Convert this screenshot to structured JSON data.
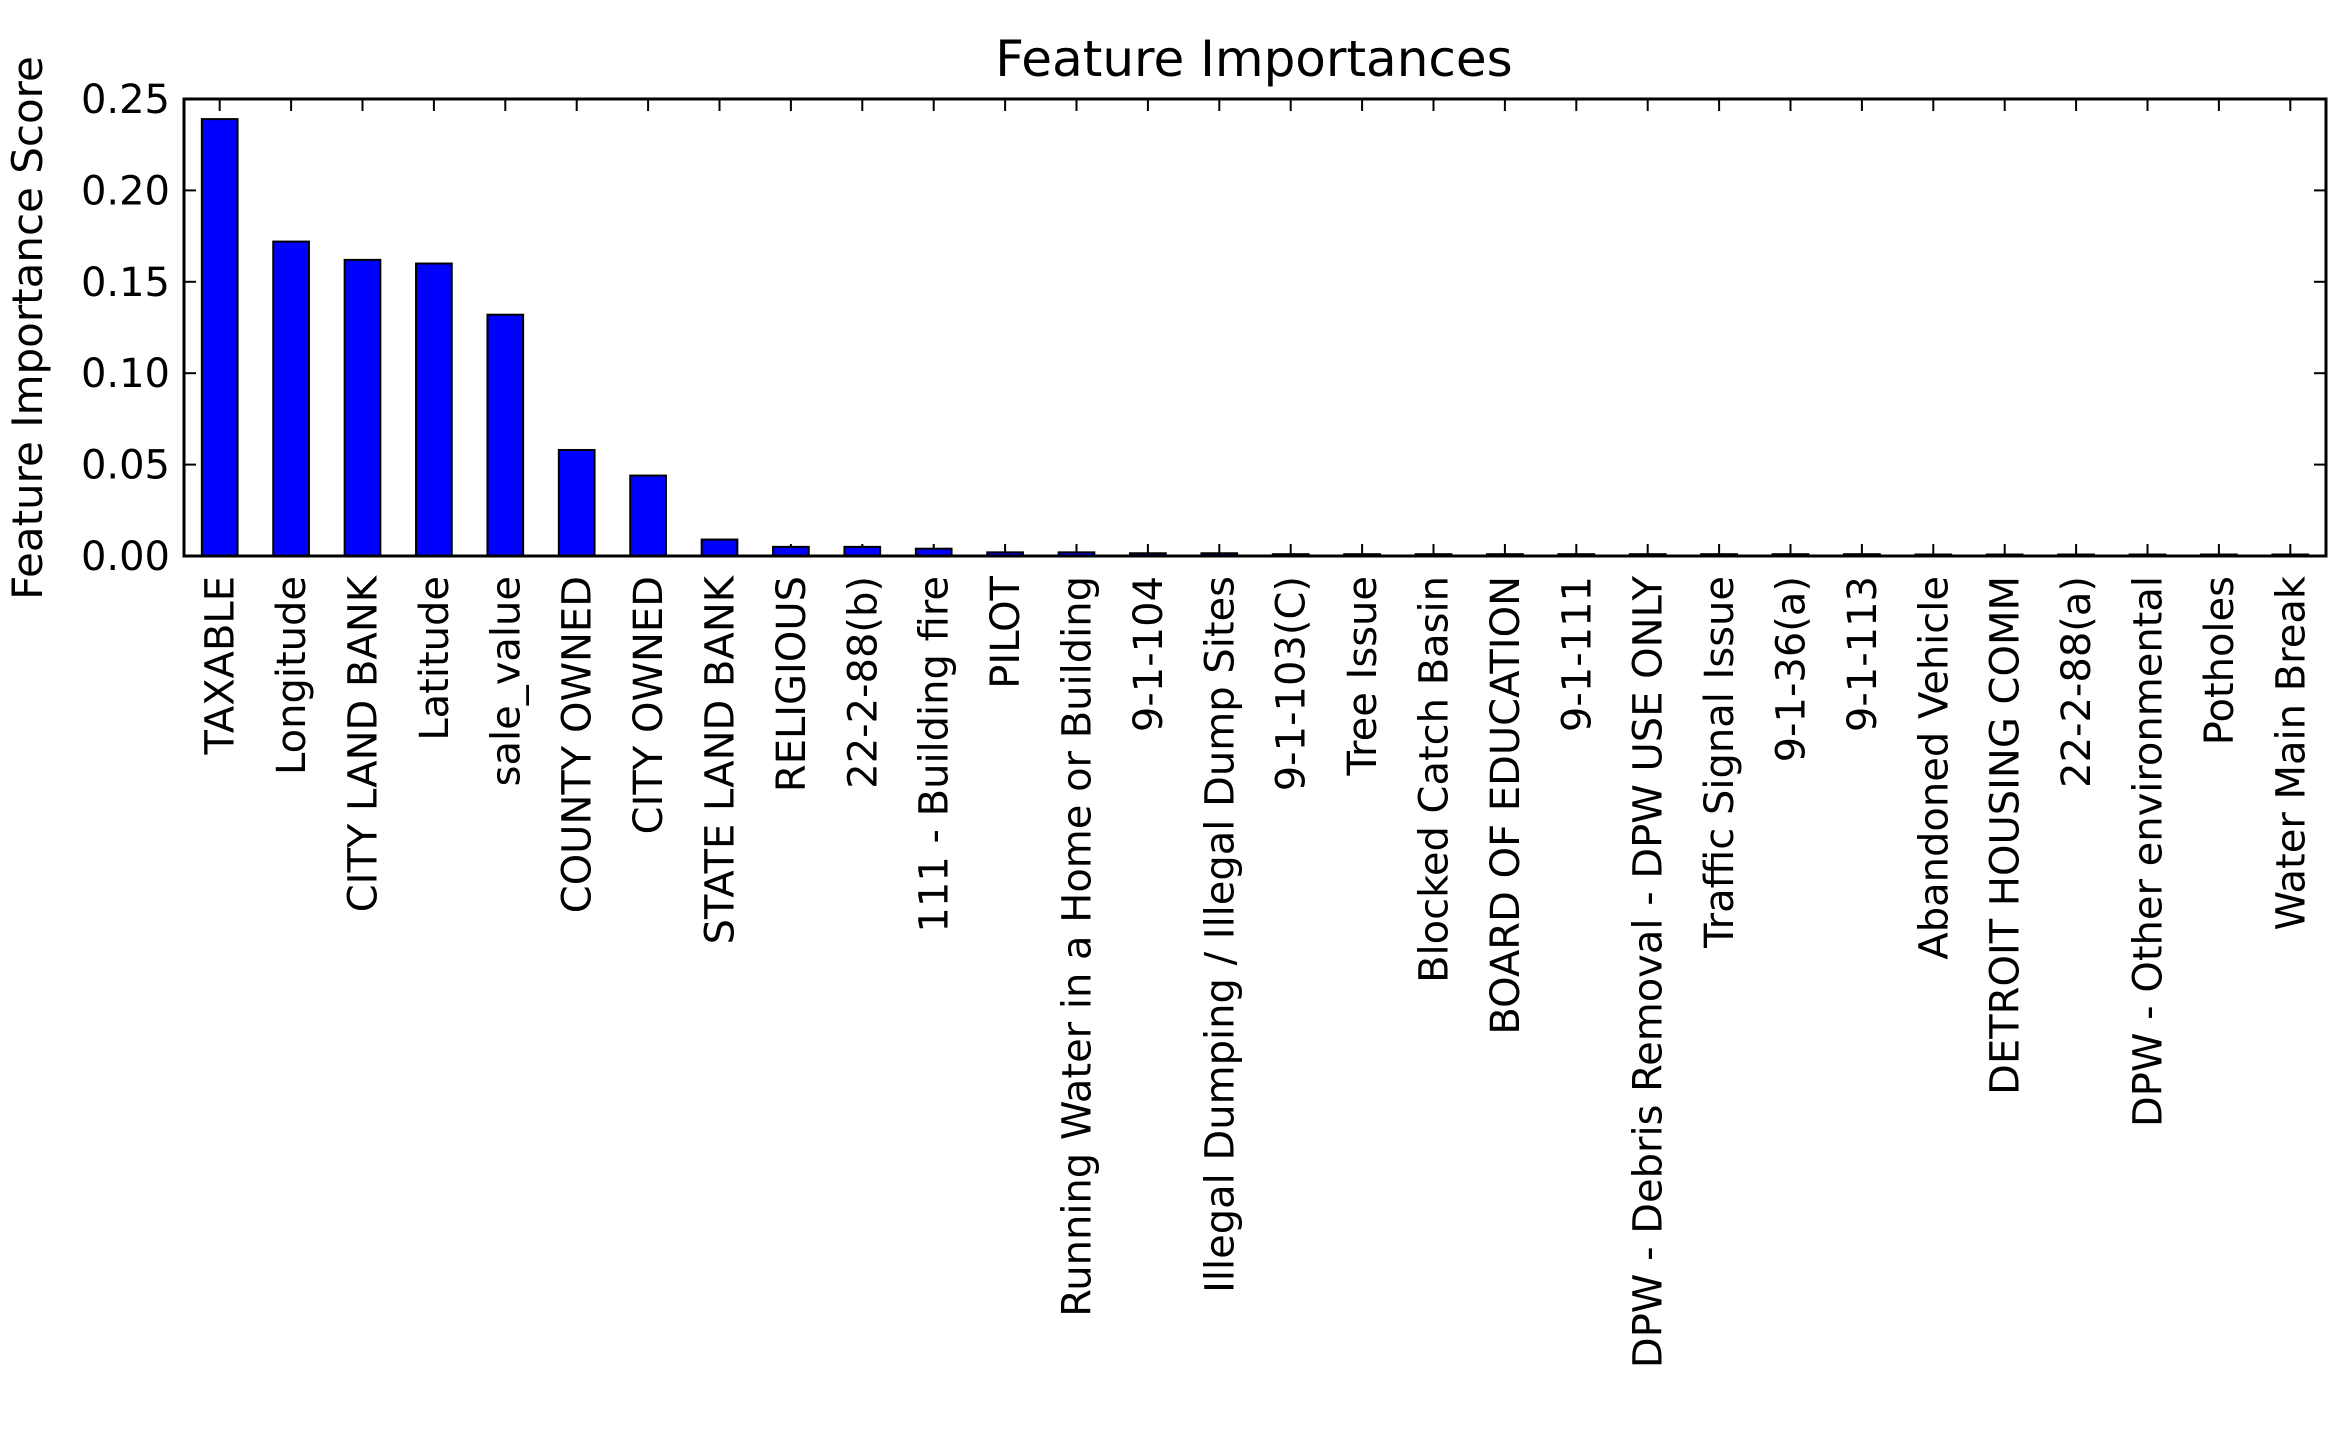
{
  "chart_data": {
    "type": "bar",
    "title": "Feature Importances",
    "xlabel": "",
    "ylabel": "Feature Importance Score",
    "ylim": [
      0,
      0.25
    ],
    "yticks": [
      "0.00",
      "0.05",
      "0.10",
      "0.15",
      "0.20",
      "0.25"
    ],
    "grid": false,
    "legend": "none",
    "bar_color": "#0000ff",
    "edge_color": "#000000",
    "categories": [
      "TAXABLE",
      "Longitude",
      "CITY LAND BANK",
      "Latitude",
      "sale_value",
      "COUNTY OWNED",
      "CITY OWNED",
      "STATE LAND BANK",
      "RELIGIOUS",
      "22-2-88(b)",
      "111 - Building fire",
      "PILOT",
      "Running Water in a Home or Building",
      "9-1-104",
      "Illegal Dumping / Illegal Dump Sites",
      "9-1-103(C)",
      "Tree Issue",
      "Blocked Catch Basin",
      "BOARD OF EDUCATION",
      "9-1-111",
      "DPW - Debris Removal - DPW USE ONLY",
      "Traffic Signal Issue",
      "9-1-36(a)",
      "9-1-113",
      "Abandoned Vehicle",
      "DETROIT HOUSING COMM",
      "22-2-88(a)",
      "DPW - Other environmental",
      "Potholes",
      "Water Main Break"
    ],
    "values": [
      0.239,
      0.172,
      0.162,
      0.16,
      0.132,
      0.058,
      0.044,
      0.009,
      0.005,
      0.005,
      0.004,
      0.002,
      0.002,
      0.0015,
      0.0015,
      0.001,
      0.001,
      0.001,
      0.001,
      0.001,
      0.001,
      0.001,
      0.001,
      0.001,
      0.0003,
      0.0002,
      0.0002,
      0.0001,
      0.0001,
      0.0001
    ]
  }
}
